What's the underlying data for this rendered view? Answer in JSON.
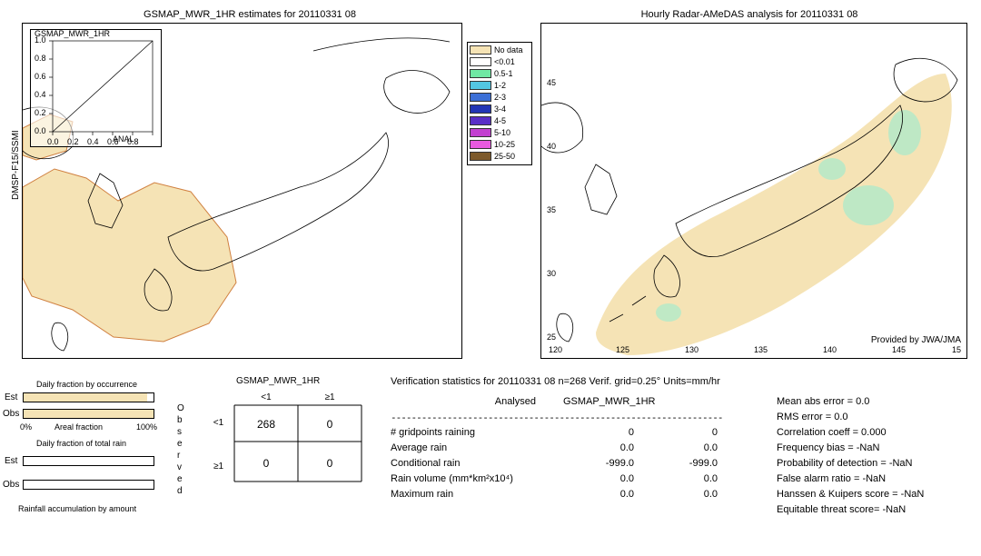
{
  "panels": {
    "left": {
      "title": "GSMAP_MWR_1HR estimates for 20110331 08",
      "inset_label": "GSMAP_MWR_1HR",
      "inset_anal": "ANAL",
      "yaxis_label": "DMSP-F15/SSMI",
      "nodata_color": "#f5e3b5",
      "inset_xticks": [
        "0.0",
        "0.2",
        "0.4",
        "0.6",
        "0.8",
        "1.0"
      ],
      "inset_yticks": [
        "0.0",
        "0.2",
        "0.4",
        "0.6",
        "0.8",
        "1.0"
      ]
    },
    "right": {
      "title": "Hourly Radar-AMeDAS analysis for 20110331 08",
      "provider": "Provided by JWA/JMA",
      "lon_ticks": [
        "120",
        "125",
        "130",
        "135",
        "140",
        "145",
        "15"
      ],
      "lat_ticks": [
        "45",
        "40",
        "35",
        "30",
        "25"
      ],
      "nodata_color": "#f5e3b5",
      "light_precip_color": "#b9e9c7"
    },
    "legend": {
      "items": [
        {
          "label": "No data",
          "color": "#f5e3b5"
        },
        {
          "label": "<0.01",
          "color": "#ffffff"
        },
        {
          "label": "0.5-1",
          "color": "#6fe8a3"
        },
        {
          "label": "1-2",
          "color": "#53c6e2"
        },
        {
          "label": "2-3",
          "color": "#3b6fd6"
        },
        {
          "label": "3-4",
          "color": "#2236b5"
        },
        {
          "label": "4-5",
          "color": "#5a2ec7"
        },
        {
          "label": "5-10",
          "color": "#c23fd0"
        },
        {
          "label": "10-25",
          "color": "#e95adf"
        },
        {
          "label": "25-50",
          "color": "#7d5a2b"
        }
      ]
    }
  },
  "bottom": {
    "occurrence": {
      "title": "Daily fraction by occurrence",
      "est_label": "Est",
      "obs_label": "Obs",
      "areal_label": "Areal fraction",
      "pct0": "0%",
      "pct100": "100%",
      "rain_title": "Daily fraction of total rain",
      "accum_title": "Rainfall accumulation by amount",
      "est_fill_pct": 95,
      "obs_fill_pct": 100,
      "est2_fill_pct": 0,
      "obs2_fill_pct": 0,
      "bar_color": "#f5e3b5"
    },
    "contingency": {
      "header": "GSMAP_MWR_1HR",
      "col1": "<1",
      "col2": "≥1",
      "row1": "<1",
      "row2": "≥1",
      "observed_label": "Observed",
      "cells": [
        [
          "268",
          "0"
        ],
        [
          "0",
          "0"
        ]
      ]
    },
    "verif": {
      "title": "Verification statistics for 20110331 08  n=268  Verif. grid=0.25°  Units=mm/hr",
      "analysed_hdr": "Analysed",
      "est_hdr": "GSMAP_MWR_1HR",
      "rows": [
        {
          "label": "# gridpoints raining",
          "c1": "0",
          "c2": "0"
        },
        {
          "label": "Average rain",
          "c1": "0.0",
          "c2": "0.0"
        },
        {
          "label": "Conditional rain",
          "c1": "-999.0",
          "c2": "-999.0"
        },
        {
          "label": "Rain volume (mm*km²x10⁴)",
          "c1": "0.0",
          "c2": "0.0"
        },
        {
          "label": "Maximum rain",
          "c1": "0.0",
          "c2": "0.0"
        }
      ],
      "scores": [
        "Mean abs error = 0.0",
        "RMS error = 0.0",
        "Correlation coeff = 0.000",
        "Frequency bias = -NaN",
        "Probability of detection = -NaN",
        "False alarm ratio = -NaN",
        "Hanssen & Kuipers score = -NaN",
        "Equitable threat score= -NaN"
      ]
    }
  }
}
